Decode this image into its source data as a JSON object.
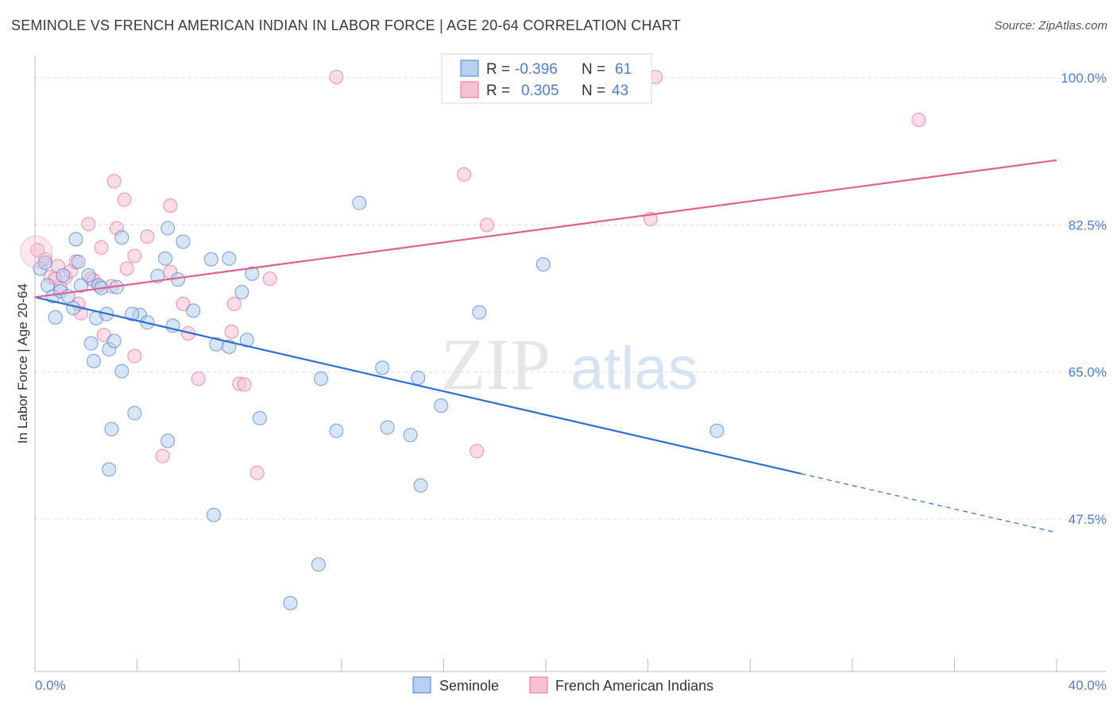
{
  "title": "SEMINOLE VS FRENCH AMERICAN INDIAN IN LABOR FORCE | AGE 20-64 CORRELATION CHART",
  "source": "Source: ZipAtlas.com",
  "watermark": {
    "zip": "ZIP",
    "atlas": "atlas"
  },
  "colors": {
    "blue": "#4a7fcf",
    "blue_fill": "#b8d0f0",
    "blue_line": "#2f6fd0",
    "pink": "#e86d99",
    "pink_fill": "#f7c0d3",
    "pink_line": "#e0608f",
    "grid": "#dddddd"
  },
  "legend": {
    "rows": [
      {
        "r_label": "R = ",
        "r_value": "-0.396",
        "n_label": "N = ",
        "n_value": "61"
      },
      {
        "r_label": "R = ",
        "r_value": "0.305",
        "n_label": "N = ",
        "n_value": "43"
      }
    ]
  },
  "chart_data": {
    "type": "scatter",
    "xlabel": "",
    "ylabel": "In Labor Force | Age 20-64",
    "xlim": [
      0,
      40
    ],
    "ylim": [
      32,
      102
    ],
    "x_tick_labels": [
      "0.0%",
      "40.0%"
    ],
    "y_ticks": [
      {
        "value": 100.0,
        "label": "100.0%"
      },
      {
        "value": 82.5,
        "label": "82.5%"
      },
      {
        "value": 65.0,
        "label": "65.0%"
      },
      {
        "value": 47.5,
        "label": "47.5%"
      }
    ],
    "grid": true,
    "legend_position": "top-center",
    "series": [
      {
        "name": "Seminole",
        "color": "#4a7fcf",
        "trend": {
          "x_start": 0,
          "y_start": 73.9,
          "x_solid_end": 30.0,
          "y_solid_end": 52.9,
          "x_end": 40.0,
          "y_end": 45.9
        },
        "points": [
          [
            0.2,
            77.3
          ],
          [
            0.4,
            78.0
          ],
          [
            0.5,
            75.3
          ],
          [
            0.7,
            74.0
          ],
          [
            0.8,
            71.5
          ],
          [
            1.0,
            74.6
          ],
          [
            1.1,
            76.5
          ],
          [
            1.3,
            74.0
          ],
          [
            1.5,
            72.6
          ],
          [
            1.6,
            80.8
          ],
          [
            1.7,
            78.1
          ],
          [
            1.8,
            75.3
          ],
          [
            2.1,
            76.5
          ],
          [
            2.2,
            68.4
          ],
          [
            2.3,
            66.3
          ],
          [
            2.4,
            71.4
          ],
          [
            2.5,
            75.3
          ],
          [
            2.6,
            75.0
          ],
          [
            2.8,
            71.9
          ],
          [
            2.9,
            67.7
          ],
          [
            3.1,
            68.7
          ],
          [
            3.2,
            75.1
          ],
          [
            3.4,
            65.1
          ],
          [
            3.4,
            81.0
          ],
          [
            3.0,
            58.2
          ],
          [
            2.9,
            53.4
          ],
          [
            3.9,
            60.1
          ],
          [
            4.1,
            71.8
          ],
          [
            4.4,
            70.9
          ],
          [
            4.8,
            76.4
          ],
          [
            5.1,
            78.5
          ],
          [
            5.2,
            82.1
          ],
          [
            5.4,
            70.5
          ],
          [
            5.6,
            76.0
          ],
          [
            5.8,
            80.5
          ],
          [
            6.2,
            72.3
          ],
          [
            6.9,
            78.4
          ],
          [
            7.1,
            68.3
          ],
          [
            7.6,
            78.5
          ],
          [
            7.6,
            68.0
          ],
          [
            8.1,
            74.5
          ],
          [
            8.3,
            68.8
          ],
          [
            8.5,
            76.7
          ],
          [
            8.8,
            59.5
          ],
          [
            7.0,
            48.0
          ],
          [
            10.0,
            37.5
          ],
          [
            11.1,
            42.1
          ],
          [
            11.2,
            64.2
          ],
          [
            11.8,
            58.0
          ],
          [
            12.7,
            85.1
          ],
          [
            13.6,
            65.5
          ],
          [
            13.8,
            58.4
          ],
          [
            14.7,
            57.5
          ],
          [
            15.0,
            64.3
          ],
          [
            15.1,
            51.5
          ],
          [
            15.9,
            61.0
          ],
          [
            17.4,
            72.1
          ],
          [
            19.9,
            77.8
          ],
          [
            26.7,
            58.0
          ],
          [
            5.2,
            56.8
          ],
          [
            3.8,
            71.9
          ]
        ]
      },
      {
        "name": "French American Indians",
        "color": "#e86d99",
        "trend": {
          "x_start": 0,
          "y_start": 73.9,
          "x_end": 40.0,
          "y_end": 90.2
        },
        "points": [
          [
            0.1,
            79.5
          ],
          [
            0.4,
            78.4
          ],
          [
            0.6,
            76.3
          ],
          [
            0.8,
            76.1
          ],
          [
            1.0,
            75.0
          ],
          [
            1.2,
            76.3
          ],
          [
            1.4,
            77.0
          ],
          [
            1.6,
            78.1
          ],
          [
            1.8,
            72.0
          ],
          [
            2.1,
            82.6
          ],
          [
            2.2,
            76.1
          ],
          [
            2.3,
            75.9
          ],
          [
            2.6,
            79.8
          ],
          [
            2.7,
            69.4
          ],
          [
            3.0,
            75.2
          ],
          [
            3.1,
            87.7
          ],
          [
            3.2,
            82.1
          ],
          [
            3.5,
            85.5
          ],
          [
            3.6,
            77.3
          ],
          [
            3.9,
            78.8
          ],
          [
            3.9,
            66.9
          ],
          [
            4.4,
            81.1
          ],
          [
            5.0,
            55.0
          ],
          [
            5.3,
            84.8
          ],
          [
            5.3,
            76.9
          ],
          [
            5.8,
            73.1
          ],
          [
            6.0,
            69.6
          ],
          [
            6.4,
            64.2
          ],
          [
            7.7,
            69.8
          ],
          [
            7.8,
            73.1
          ],
          [
            8.0,
            63.6
          ],
          [
            8.2,
            63.5
          ],
          [
            8.7,
            53.0
          ],
          [
            9.2,
            76.1
          ],
          [
            11.8,
            100.1
          ],
          [
            16.8,
            88.5
          ],
          [
            17.3,
            55.6
          ],
          [
            17.7,
            82.5
          ],
          [
            24.1,
            83.2
          ],
          [
            24.3,
            100.1
          ],
          [
            34.6,
            95.0
          ],
          [
            0.9,
            77.6
          ],
          [
            1.7,
            73.1
          ]
        ]
      }
    ]
  },
  "bottom_legend": [
    {
      "label": "Seminole"
    },
    {
      "label": "French American Indians"
    }
  ]
}
